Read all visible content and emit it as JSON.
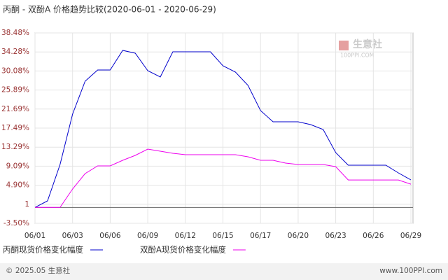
{
  "chart_data": {
    "type": "line",
    "title": "丙酮 - 双酚A 价格趋势比较(2020-06-01 - 2020-06-29)",
    "categories": [
      "06/01",
      null,
      null,
      "06/03",
      null,
      null,
      "06/06",
      null,
      null,
      "06/09",
      null,
      null,
      "06/12",
      null,
      null,
      "06/15",
      null,
      null,
      "06/17",
      null,
      null,
      "06/20",
      null,
      null,
      "06/23",
      null,
      null,
      "06/26",
      null,
      null,
      "06/29"
    ],
    "series": [
      {
        "name": "丙酮现货价格变化幅度",
        "color": "#0000cc",
        "values": [
          0,
          1.44,
          9.46,
          20.58,
          27.83,
          30.3,
          30.3,
          34.62,
          34.0,
          30.15,
          28.76,
          34.31,
          34.31,
          34.31,
          34.31,
          31.23,
          29.84,
          26.91,
          21.35,
          18.88,
          18.88,
          18.88,
          18.26,
          17.18,
          12.09,
          9.31,
          9.31,
          9.31,
          9.31,
          7.61,
          6.07
        ]
      },
      {
        "name": "双酚A现货价格变化幅度",
        "color": "#ee00ee",
        "values": [
          0,
          0,
          0,
          4.06,
          7.46,
          9.16,
          9.16,
          10.39,
          11.47,
          12.86,
          12.4,
          11.93,
          11.63,
          11.63,
          11.63,
          11.63,
          11.63,
          11.16,
          10.39,
          10.39,
          9.77,
          9.46,
          9.46,
          9.46,
          8.99,
          6.05,
          6.05,
          6.05,
          6.05,
          6.05,
          5.13
        ]
      }
    ],
    "ylim": [
      -3.5,
      38.48
    ],
    "yticks": [
      {
        "value": 38.48,
        "label": "38.48%"
      },
      {
        "value": 34.28,
        "label": "34.28%"
      },
      {
        "value": 30.08,
        "label": "30.08%"
      },
      {
        "value": 25.89,
        "label": "25.89%"
      },
      {
        "value": 21.69,
        "label": "21.69%"
      },
      {
        "value": 17.49,
        "label": "17.49%"
      },
      {
        "value": 13.29,
        "label": "13.29%"
      },
      {
        "value": 9.09,
        "label": "9.09%"
      },
      {
        "value": 4.9,
        "label": "4.90%"
      },
      {
        "value": 0.7,
        "label": "1"
      },
      {
        "value": -3.5,
        "label": "-3.50%"
      }
    ],
    "grid": true
  },
  "watermark": {
    "brand": "生意社",
    "site": "100PPI.COM"
  },
  "footer": {
    "left": "© 2025.05 生意社",
    "right": "www.100PPI.com"
  }
}
